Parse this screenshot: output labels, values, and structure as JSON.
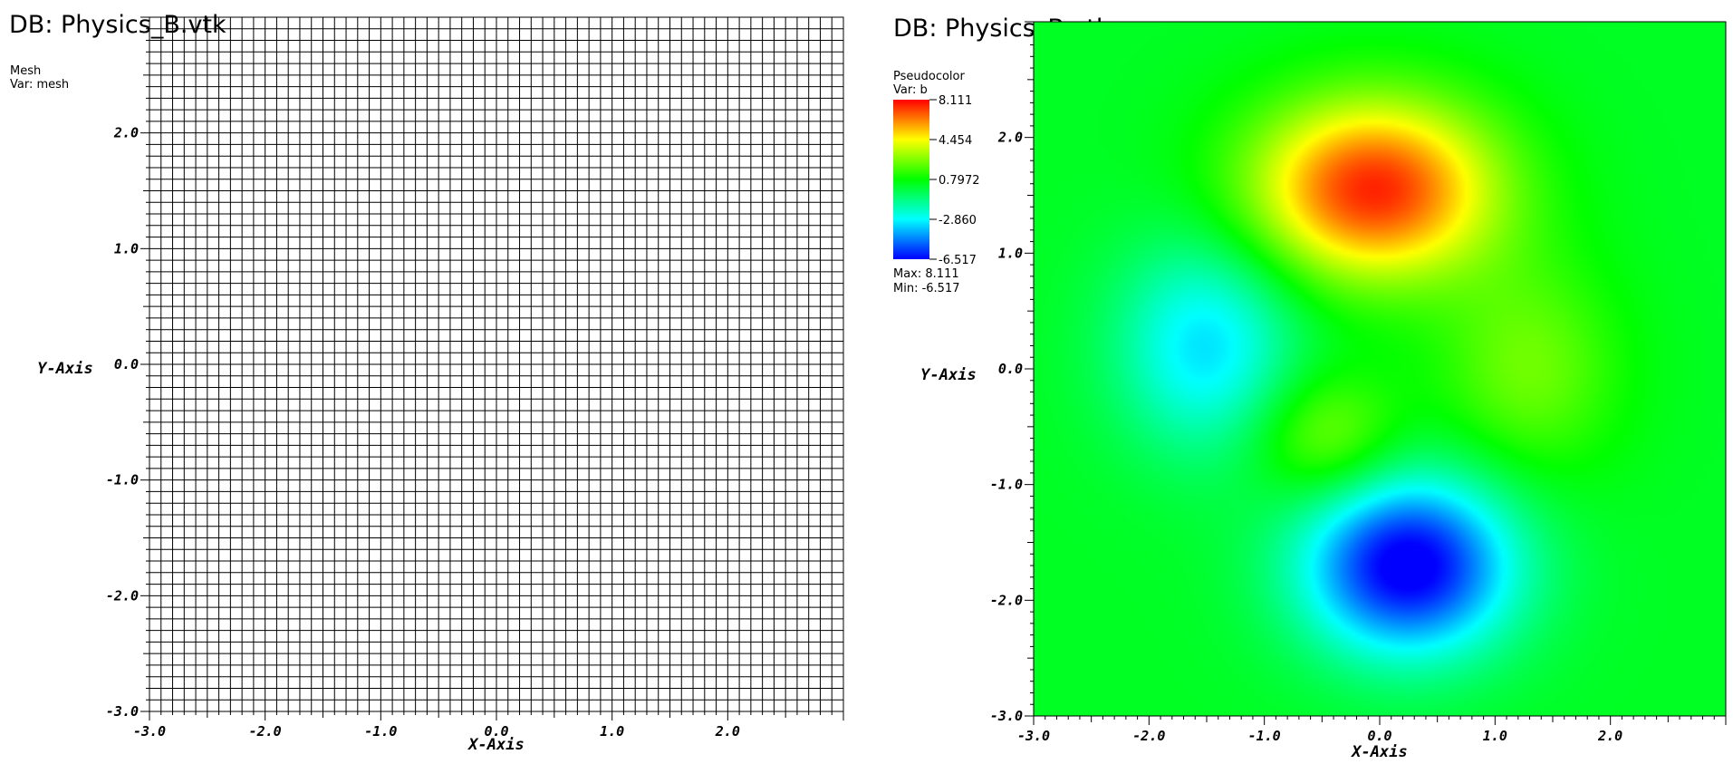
{
  "colors": {
    "mesh_line": "#000000",
    "background": "#ffffff",
    "colormap": [
      "#0000ff",
      "#00ffff",
      "#00ff00",
      "#ffff00",
      "#ff0000"
    ]
  },
  "chart_data": [
    {
      "type": "mesh",
      "title": "DB: Physics_B.vtk",
      "plot_label": "Mesh",
      "var_label": "Var: mesh",
      "xlabel": "X-Axis",
      "ylabel": "Y-Axis",
      "xlim": [
        -3.0,
        3.0
      ],
      "ylim": [
        -3.0,
        3.0
      ],
      "xticks": [
        "-3.0",
        "-2.0",
        "-1.0",
        "0.0",
        "1.0",
        "2.0"
      ],
      "yticks": [
        "-3.0",
        "-2.0",
        "-1.0",
        "0.0",
        "1.0",
        "2.0"
      ],
      "grid_cells": [
        60,
        60
      ]
    },
    {
      "type": "heatmap",
      "title": "DB: Physics_B.vtk",
      "plot_label": "Pseudocolor",
      "var_label": "Var: b",
      "xlabel": "X-Axis",
      "ylabel": "Y-Axis",
      "xlim": [
        -3.0,
        3.0
      ],
      "ylim": [
        -3.0,
        3.0
      ],
      "xticks": [
        "-3.0",
        "-2.0",
        "-1.0",
        "0.0",
        "1.0",
        "2.0"
      ],
      "yticks": [
        "-3.0",
        "-2.0",
        "-1.0",
        "0.0",
        "1.0",
        "2.0"
      ],
      "legend_ticks": [
        "8.111",
        "4.454",
        "0.7972",
        "-2.860",
        "-6.517"
      ],
      "max_label": "Max:  8.111",
      "min_label": "Min: -6.517",
      "vmin": -6.517,
      "vmax": 8.111,
      "features": [
        {
          "x": -0.05,
          "y": 1.55,
          "amplitude": 7.3,
          "sx": 0.75,
          "sy": 0.55
        },
        {
          "x": 0.25,
          "y": -1.7,
          "amplitude": -7.3,
          "sx": 0.65,
          "sy": 0.55
        },
        {
          "x": -1.5,
          "y": 0.2,
          "amplitude": -3.6,
          "sx": 0.55,
          "sy": 0.65
        },
        {
          "x": 1.3,
          "y": 0.0,
          "amplitude": 2.1,
          "sx": 0.55,
          "sy": 0.65
        },
        {
          "x": -0.45,
          "y": -0.6,
          "amplitude": 2.4,
          "sx": 0.45,
          "sy": 0.4
        }
      ]
    }
  ]
}
